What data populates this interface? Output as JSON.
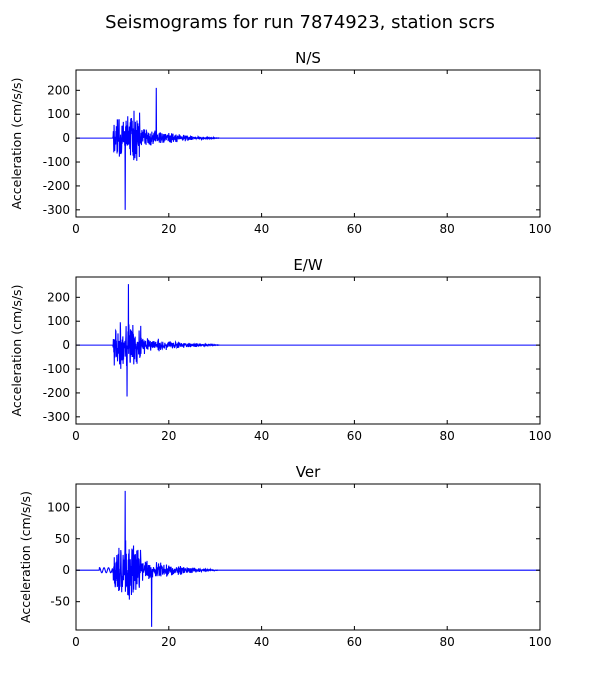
{
  "figure": {
    "title": "Seismograms for run 7874923, station scrs"
  },
  "chart_data": [
    {
      "type": "line",
      "title": "N/S",
      "xlabel": "",
      "ylabel": "Acceleration (cm/s/s)",
      "xlim": [
        0,
        100
      ],
      "ylim": [
        -330,
        285
      ],
      "xticks": [
        0,
        20,
        40,
        60,
        80,
        100
      ],
      "yticks": [
        -300,
        -200,
        -100,
        0,
        100,
        200
      ],
      "grid": false,
      "color": "#0000ff",
      "signal": {
        "duration": 100,
        "onset": 7.9,
        "strong_end": 14,
        "coda_end": 31,
        "peak_max": 210,
        "peak_max_time": 17.3,
        "peak_min": -300,
        "peak_min_time": 10.6,
        "seed": 11
      }
    },
    {
      "type": "line",
      "title": "E/W",
      "xlabel": "",
      "ylabel": "Acceleration (cm/s/s)",
      "xlim": [
        0,
        100
      ],
      "ylim": [
        -330,
        285
      ],
      "xticks": [
        0,
        20,
        40,
        60,
        80,
        100
      ],
      "yticks": [
        -300,
        -200,
        -100,
        0,
        100,
        200
      ],
      "grid": false,
      "color": "#0000ff",
      "signal": {
        "duration": 100,
        "onset": 7.9,
        "strong_end": 14,
        "coda_end": 31,
        "peak_max": 255,
        "peak_max_time": 11.3,
        "peak_min": -215,
        "peak_min_time": 11.0,
        "seed": 23
      }
    },
    {
      "type": "line",
      "title": "Ver",
      "xlabel": "",
      "ylabel": "Acceleration (cm/s/s)",
      "xlim": [
        0,
        100
      ],
      "ylim": [
        -95,
        137
      ],
      "xticks": [
        0,
        20,
        40,
        60,
        80,
        100
      ],
      "yticks": [
        -50,
        0,
        50,
        100
      ],
      "grid": false,
      "color": "#0000ff",
      "signal": {
        "duration": 100,
        "onset": 7.9,
        "strong_end": 14,
        "coda_end": 31,
        "peak_max": 126,
        "peak_max_time": 10.6,
        "peak_min": -90,
        "peak_min_time": 16.3,
        "precursor": 4,
        "seed": 37
      }
    }
  ]
}
